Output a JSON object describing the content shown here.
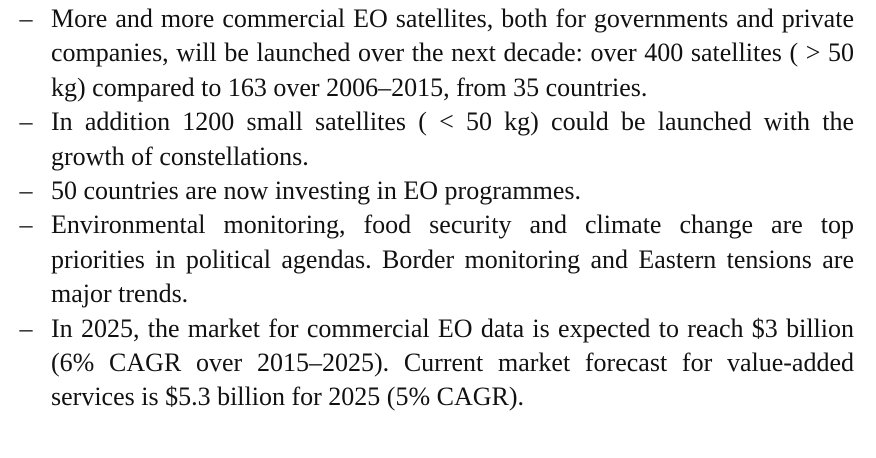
{
  "document": {
    "dash_glyph": "–",
    "bullets": [
      {
        "text": "More and more commercial EO satellites, both for governments and private companies, will be launched over the next decade: over 400 satellites ( > 50 kg) compared to 163 over 2006–2015, from 35 countries."
      },
      {
        "text": "In addition 1200 small satellites ( < 50 kg) could be launched with the growth of constellations."
      },
      {
        "text": "50 countries are now investing in EO programmes."
      },
      {
        "text": "Environmental monitoring, food security and climate change are top priorities in political agendas. Border monitoring and Eastern tensions are major trends."
      },
      {
        "text": "In 2025, the market for commercial EO data is expected to reach $3 billion (6% CAGR over 2015–2025). Current market forecast for value-added services is $5.3 billion for 2025 (5% CAGR)."
      }
    ]
  }
}
